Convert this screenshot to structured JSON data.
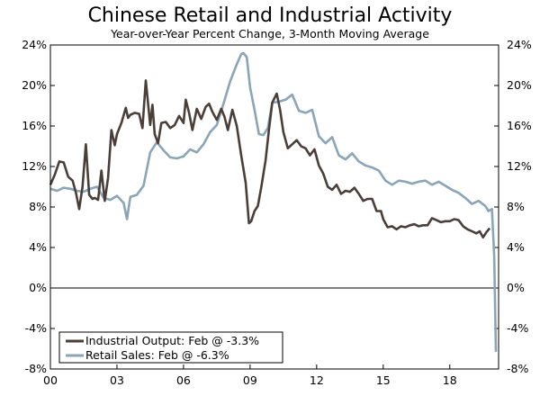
{
  "chart_data": {
    "type": "line",
    "title": "Chinese Retail and Industrial Activity",
    "subtitle": "Year-over-Year Percent Change, 3-Month Moving Average",
    "xlabel": "",
    "ylabel": "",
    "ylim": [
      -8,
      24
    ],
    "y_ticks": [
      -8,
      -4,
      0,
      4,
      8,
      12,
      16,
      20,
      24
    ],
    "y_tick_labels": [
      "-8%",
      "-4%",
      "0%",
      "4%",
      "8%",
      "12%",
      "16%",
      "20%",
      "24%"
    ],
    "x_range": [
      2000.0,
      2020.2
    ],
    "x_ticks": [
      2000,
      2003,
      2006,
      2009,
      2012,
      2015,
      2018
    ],
    "x_tick_labels": [
      "00",
      "03",
      "06",
      "09",
      "12",
      "15",
      "18"
    ],
    "grid": false,
    "zero_line": true,
    "legend_position": "bottom-left",
    "series": [
      {
        "name": "Industrial Output: Feb @ -3.3%",
        "color": "#4a3f38",
        "x": [
          2000.0,
          2000.2,
          2000.4,
          2000.6,
          2000.8,
          2001.0,
          2001.15,
          2001.3,
          2001.45,
          2001.6,
          2001.75,
          2001.9,
          2002.0,
          2002.15,
          2002.3,
          2002.45,
          2002.6,
          2002.75,
          2002.9,
          2003.0,
          2003.2,
          2003.4,
          2003.5,
          2003.6,
          2003.8,
          2004.0,
          2004.15,
          2004.3,
          2004.5,
          2004.6,
          2004.7,
          2004.85,
          2005.0,
          2005.2,
          2005.4,
          2005.6,
          2005.8,
          2006.0,
          2006.1,
          2006.25,
          2006.4,
          2006.6,
          2006.8,
          2007.0,
          2007.15,
          2007.3,
          2007.5,
          2007.7,
          2007.85,
          2008.0,
          2008.2,
          2008.4,
          2008.6,
          2008.8,
          2008.95,
          2009.05,
          2009.2,
          2009.35,
          2009.5,
          2009.7,
          2009.85,
          2010.0,
          2010.2,
          2010.35,
          2010.5,
          2010.7,
          2010.9,
          2011.1,
          2011.3,
          2011.5,
          2011.7,
          2011.9,
          2012.1,
          2012.3,
          2012.5,
          2012.7,
          2012.9,
          2013.1,
          2013.3,
          2013.5,
          2013.7,
          2013.9,
          2014.1,
          2014.3,
          2014.5,
          2014.7,
          2014.9,
          2015.0,
          2015.2,
          2015.4,
          2015.6,
          2015.8,
          2016.0,
          2016.2,
          2016.4,
          2016.6,
          2016.8,
          2017.0,
          2017.2,
          2017.4,
          2017.6,
          2017.8,
          2018.0,
          2018.2,
          2018.4,
          2018.6,
          2018.8,
          2019.0,
          2019.2,
          2019.35,
          2019.5,
          2019.65,
          2019.8
        ],
        "values": [
          10.2,
          11.2,
          12.5,
          12.4,
          11.0,
          10.6,
          9.4,
          7.8,
          10.0,
          14.2,
          9.2,
          8.8,
          8.9,
          8.7,
          11.6,
          8.6,
          10.9,
          15.6,
          14.1,
          15.2,
          16.3,
          17.8,
          16.8,
          17.1,
          17.3,
          17.2,
          15.8,
          20.5,
          16.1,
          18.1,
          15.2,
          14.3,
          16.3,
          16.4,
          15.8,
          16.1,
          17.0,
          16.3,
          18.6,
          17.3,
          15.6,
          17.7,
          16.7,
          17.9,
          18.2,
          17.4,
          16.6,
          17.7,
          16.9,
          15.6,
          17.6,
          16.0,
          13.1,
          10.4,
          6.4,
          6.6,
          7.6,
          8.1,
          9.9,
          12.6,
          15.6,
          18.3,
          19.2,
          17.6,
          15.4,
          13.8,
          14.2,
          14.6,
          14.0,
          13.8,
          13.1,
          13.7,
          12.1,
          11.3,
          10.0,
          9.7,
          10.2,
          9.3,
          9.6,
          9.5,
          9.9,
          9.3,
          8.6,
          8.8,
          8.8,
          7.6,
          7.6,
          6.8,
          6.0,
          6.1,
          5.8,
          6.1,
          6.0,
          6.2,
          6.3,
          6.1,
          6.2,
          6.2,
          6.9,
          6.7,
          6.5,
          6.6,
          6.6,
          6.8,
          6.7,
          6.1,
          5.8,
          5.6,
          5.4,
          5.6,
          5.0,
          5.5,
          5.9
        ]
      },
      {
        "name": "Retail Sales: Feb @ -6.3%",
        "color": "#8aa4b8",
        "x": [
          2000.0,
          2000.3,
          2000.6,
          2000.9,
          2001.2,
          2001.5,
          2001.8,
          2002.1,
          2002.4,
          2002.7,
          2003.0,
          2003.3,
          2003.45,
          2003.6,
          2003.9,
          2004.2,
          2004.5,
          2004.8,
          2005.1,
          2005.4,
          2005.7,
          2006.0,
          2006.3,
          2006.6,
          2006.9,
          2007.2,
          2007.5,
          2007.8,
          2008.1,
          2008.4,
          2008.6,
          2008.7,
          2008.85,
          2009.0,
          2009.2,
          2009.4,
          2009.6,
          2009.8,
          2010.0,
          2010.3,
          2010.6,
          2010.9,
          2011.2,
          2011.5,
          2011.8,
          2012.1,
          2012.4,
          2012.7,
          2013.0,
          2013.3,
          2013.6,
          2013.9,
          2014.2,
          2014.5,
          2014.8,
          2015.1,
          2015.4,
          2015.7,
          2016.0,
          2016.3,
          2016.6,
          2016.9,
          2017.2,
          2017.5,
          2017.8,
          2018.1,
          2018.4,
          2018.7,
          2019.0,
          2019.3,
          2019.6,
          2019.75,
          2019.9,
          2020.0,
          2020.08
        ],
        "values": [
          9.8,
          9.6,
          9.9,
          9.8,
          9.6,
          9.5,
          9.8,
          10.0,
          8.9,
          8.7,
          9.1,
          8.4,
          6.8,
          9.0,
          9.2,
          10.1,
          13.4,
          14.4,
          13.6,
          12.9,
          12.8,
          13.0,
          13.7,
          13.4,
          14.2,
          15.4,
          16.1,
          18.2,
          20.4,
          22.1,
          23.1,
          23.2,
          22.8,
          19.8,
          17.6,
          15.2,
          15.1,
          15.8,
          18.3,
          18.4,
          18.6,
          19.1,
          17.5,
          17.3,
          17.6,
          15.0,
          14.3,
          14.9,
          13.1,
          12.7,
          13.3,
          12.5,
          12.1,
          11.9,
          11.6,
          10.6,
          10.2,
          10.6,
          10.5,
          10.3,
          10.5,
          10.6,
          10.2,
          10.5,
          10.1,
          9.7,
          9.4,
          8.9,
          8.3,
          8.6,
          8.1,
          7.6,
          7.8,
          3.2,
          -6.3
        ]
      }
    ]
  }
}
